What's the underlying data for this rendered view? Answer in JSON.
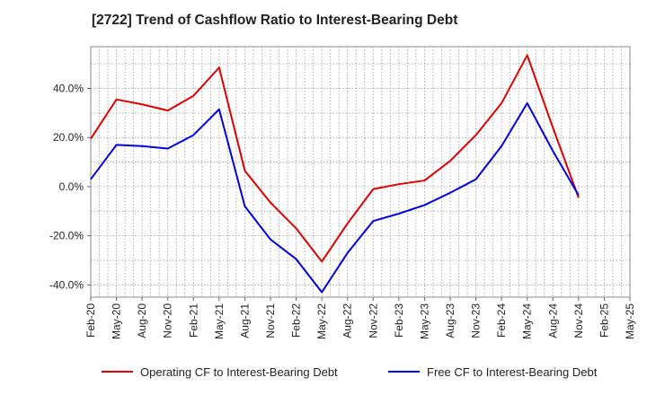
{
  "chart_data": {
    "type": "line",
    "title": "[2722]  Trend of Cashflow Ratio to Interest-Bearing Debt",
    "xlabel": "",
    "ylabel": "",
    "x_tick_labels": [
      "Feb-20",
      "May-20",
      "Aug-20",
      "Nov-20",
      "Feb-21",
      "May-21",
      "Aug-21",
      "Nov-21",
      "Feb-22",
      "May-22",
      "Aug-22",
      "Nov-22",
      "Feb-23",
      "May-23",
      "Aug-23",
      "Nov-23",
      "Feb-24",
      "May-24",
      "Aug-24",
      "Nov-24",
      "Feb-25",
      "May-25"
    ],
    "y_ticks": [
      -40,
      -20,
      0,
      20,
      40
    ],
    "y_tick_labels": [
      "-40.0%",
      "-20.0%",
      "0.0%",
      "20.0%",
      "40.0%"
    ],
    "ylim": [
      -45,
      57
    ],
    "grid": true,
    "legend_position": "bottom",
    "series": [
      {
        "name": "Operating CF to Interest-Bearing Debt",
        "color": "#e00000",
        "values": [
          19.5,
          35.5,
          33.5,
          31.0,
          37.0,
          48.5,
          6.5,
          -6.5,
          -17.0,
          -30.5,
          -15.0,
          -1.0,
          1.0,
          2.5,
          10.5,
          21.0,
          34.0,
          53.5,
          24.0,
          -4.5,
          null,
          null
        ]
      },
      {
        "name": "Free CF to Interest-Bearing Debt",
        "color": "#0000e0",
        "values": [
          3.0,
          17.0,
          16.5,
          15.5,
          21.0,
          31.5,
          -8.0,
          -21.5,
          -29.5,
          -43.0,
          -27.0,
          -14.0,
          -11.0,
          -7.5,
          -2.5,
          3.0,
          16.5,
          34.0,
          14.5,
          -3.5,
          null,
          null
        ]
      }
    ]
  }
}
